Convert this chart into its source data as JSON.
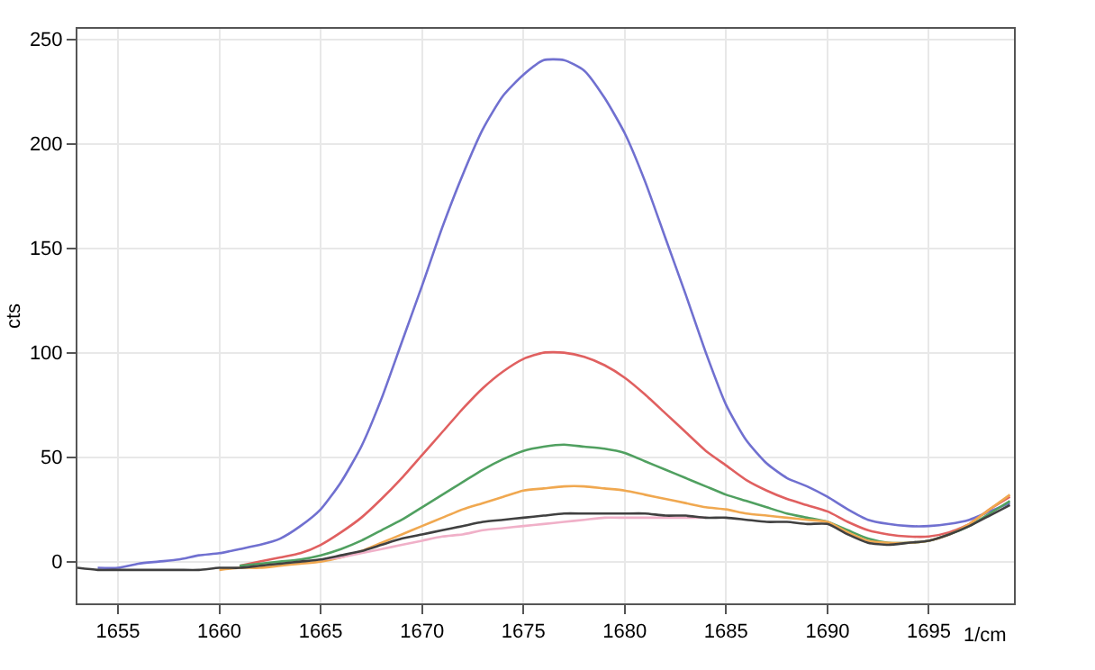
{
  "chart_data": {
    "type": "line",
    "ylabel": "cts",
    "xlabel": "1/cm",
    "x": [
      1653,
      1654,
      1655,
      1656,
      1657,
      1658,
      1659,
      1660,
      1661,
      1662,
      1663,
      1664,
      1665,
      1666,
      1667,
      1668,
      1669,
      1670,
      1671,
      1672,
      1673,
      1674,
      1675,
      1676,
      1677,
      1678,
      1679,
      1680,
      1681,
      1682,
      1683,
      1684,
      1685,
      1686,
      1687,
      1688,
      1689,
      1690,
      1691,
      1692,
      1693,
      1694,
      1695,
      1696,
      1697,
      1698,
      1699
    ],
    "xlim": [
      1653,
      1699.2
    ],
    "xticks": [
      1655,
      1660,
      1665,
      1670,
      1675,
      1680,
      1685,
      1690,
      1695
    ],
    "ylim": [
      -20,
      255
    ],
    "yticks": [
      0,
      50,
      100,
      150,
      200,
      250
    ],
    "grid": true,
    "marker": "none",
    "line_style": "solid",
    "series": [
      {
        "color": "#7070d0",
        "values": [
          null,
          -3,
          -3,
          -1,
          0,
          1,
          3,
          4,
          6,
          8,
          11,
          17,
          25,
          38,
          55,
          78,
          105,
          132,
          160,
          185,
          207,
          223,
          233,
          240,
          240,
          235,
          222,
          205,
          182,
          155,
          128,
          100,
          75,
          58,
          47,
          40,
          36,
          31,
          25,
          20,
          18,
          17,
          17,
          18,
          20,
          24,
          28
        ]
      },
      {
        "color": "#e06060",
        "values": [
          null,
          null,
          null,
          null,
          null,
          null,
          null,
          null,
          -2,
          0,
          2,
          4,
          8,
          14,
          21,
          30,
          40,
          51,
          62,
          73,
          83,
          91,
          97,
          100,
          100,
          98,
          94,
          88,
          80,
          71,
          62,
          53,
          46,
          39,
          34,
          30,
          27,
          24,
          19,
          15,
          13,
          12,
          12,
          14,
          18,
          25,
          31
        ]
      },
      {
        "color": "#50a060",
        "values": [
          null,
          null,
          null,
          null,
          null,
          null,
          null,
          null,
          -2,
          -1,
          0,
          1,
          3,
          6,
          10,
          15,
          20,
          26,
          32,
          38,
          44,
          49,
          53,
          55,
          56,
          55,
          54,
          52,
          48,
          44,
          40,
          36,
          32,
          29,
          26,
          23,
          21,
          19,
          15,
          11,
          9,
          9,
          10,
          13,
          17,
          23,
          29
        ]
      },
      {
        "color": "#f0a850",
        "values": [
          null,
          null,
          null,
          null,
          null,
          null,
          null,
          -4,
          -3,
          -3,
          -2,
          -1,
          0,
          2,
          5,
          9,
          13,
          17,
          21,
          25,
          28,
          31,
          34,
          35,
          36,
          36,
          35,
          34,
          32,
          30,
          28,
          26,
          25,
          23,
          22,
          21,
          20,
          19,
          14,
          10,
          9,
          9,
          10,
          13,
          18,
          25,
          32
        ]
      },
      {
        "color": "#f0b0c8",
        "values": [
          null,
          null,
          null,
          null,
          null,
          null,
          null,
          null,
          null,
          null,
          null,
          null,
          1,
          2,
          4,
          6,
          8,
          10,
          12,
          13,
          15,
          16,
          17,
          18,
          19,
          20,
          21,
          21,
          21,
          21,
          21,
          21,
          null,
          null,
          null,
          null,
          null,
          null,
          null,
          null,
          null,
          null,
          null,
          null,
          null,
          null,
          null
        ]
      },
      {
        "color": "#404040",
        "values": [
          -3,
          -4,
          -4,
          -4,
          -4,
          -4,
          -4,
          -3,
          -3,
          -2,
          -1,
          0,
          1,
          3,
          5,
          8,
          11,
          13,
          15,
          17,
          19,
          20,
          21,
          22,
          23,
          23,
          23,
          23,
          23,
          22,
          22,
          21,
          21,
          20,
          19,
          19,
          18,
          18,
          13,
          9,
          8,
          9,
          10,
          13,
          17,
          22,
          27
        ]
      }
    ]
  }
}
